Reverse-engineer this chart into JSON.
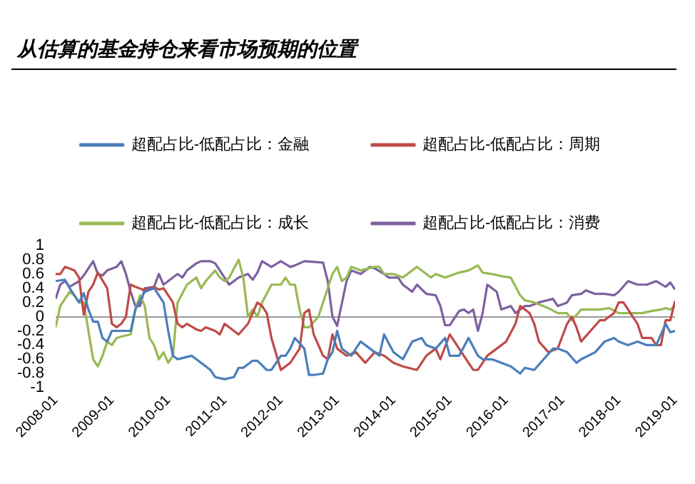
{
  "chart_data": {
    "type": "line",
    "title": "从估算的基金持仓来看市场预期的位置",
    "legend": "top",
    "xlim": [
      "2008-01",
      "2019-01"
    ],
    "xticks": [
      "2008-01",
      "2009-01",
      "2010-01",
      "2011-01",
      "2012-01",
      "2013-01",
      "2014-01",
      "2015-01",
      "2016-01",
      "2017-01",
      "2018-01",
      "2019-01"
    ],
    "ylim": [
      -1,
      1
    ],
    "yticks": [
      -1,
      -0.8,
      -0.6,
      -0.4,
      -0.2,
      0,
      0.2,
      0.4,
      0.6,
      0.8,
      1
    ],
    "series": [
      {
        "name": "超配占比-低配占比：金融",
        "color": "#4a7ebb",
        "x": [
          "2008-01",
          "2008-03",
          "2008-04",
          "2008-05",
          "2008-06",
          "2008-07",
          "2008-08",
          "2008-09",
          "2008-10",
          "2008-11",
          "2008-12",
          "2009-01",
          "2009-03",
          "2009-05",
          "2009-06",
          "2009-08",
          "2009-10",
          "2009-12",
          "2010-01",
          "2010-02",
          "2010-03",
          "2010-06",
          "2010-08",
          "2010-10",
          "2010-11",
          "2011-01",
          "2011-03",
          "2011-04",
          "2011-05",
          "2011-07",
          "2011-08",
          "2011-10",
          "2011-11",
          "2012-01",
          "2012-02",
          "2012-03",
          "2012-04",
          "2012-06",
          "2012-07",
          "2012-08",
          "2012-10",
          "2012-11",
          "2012-12",
          "2013-01",
          "2013-02",
          "2013-04",
          "2013-06",
          "2013-08",
          "2013-10",
          "2013-11",
          "2014-01",
          "2014-03",
          "2014-05",
          "2014-07",
          "2014-08",
          "2014-10",
          "2014-12",
          "2015-01",
          "2015-03",
          "2015-05",
          "2015-07",
          "2015-08",
          "2015-10",
          "2015-12",
          "2016-02",
          "2016-04",
          "2016-05",
          "2016-07",
          "2016-09",
          "2016-11",
          "2016-12",
          "2017-02",
          "2017-04",
          "2017-05",
          "2017-08",
          "2017-10",
          "2017-12",
          "2018-01",
          "2018-03",
          "2018-05",
          "2018-07",
          "2018-09",
          "2018-11",
          "2018-12",
          "2019-01"
        ],
        "values": [
          0.5,
          0.52,
          0.4,
          0.3,
          0.2,
          0.33,
          0.1,
          -0.07,
          -0.07,
          -0.3,
          -0.35,
          -0.2,
          -0.2,
          -0.2,
          0.1,
          0.35,
          0.4,
          0.2,
          -0.2,
          -0.55,
          -0.6,
          -0.55,
          -0.65,
          -0.75,
          -0.85,
          -0.88,
          -0.85,
          -0.72,
          -0.72,
          -0.62,
          -0.62,
          -0.75,
          -0.75,
          -0.55,
          -0.55,
          -0.45,
          -0.3,
          -0.45,
          -0.82,
          -0.82,
          -0.8,
          -0.6,
          -0.5,
          -0.2,
          -0.45,
          -0.55,
          -0.35,
          -0.45,
          -0.55,
          -0.25,
          -0.5,
          -0.6,
          -0.35,
          -0.3,
          -0.4,
          -0.45,
          -0.3,
          -0.55,
          -0.55,
          -0.3,
          -0.55,
          -0.6,
          -0.6,
          -0.65,
          -0.7,
          -0.8,
          -0.72,
          -0.75,
          -0.6,
          -0.45,
          -0.45,
          -0.5,
          -0.65,
          -0.6,
          -0.5,
          -0.35,
          -0.3,
          -0.35,
          -0.4,
          -0.35,
          -0.4,
          -0.4,
          -0.1,
          -0.22,
          -0.2
        ]
      },
      {
        "name": "超配占比-低配占比：周期",
        "color": "#be4b48",
        "x": [
          "2008-01",
          "2008-02",
          "2008-03",
          "2008-05",
          "2008-06",
          "2008-07",
          "2008-08",
          "2008-09",
          "2008-10",
          "2008-12",
          "2009-01",
          "2009-02",
          "2009-03",
          "2009-04",
          "2009-05",
          "2009-06",
          "2009-08",
          "2009-10",
          "2009-11",
          "2009-12",
          "2010-02",
          "2010-03",
          "2010-04",
          "2010-05",
          "2010-07",
          "2010-08",
          "2010-09",
          "2010-11",
          "2010-12",
          "2011-01",
          "2011-02",
          "2011-04",
          "2011-06",
          "2011-07",
          "2011-08",
          "2011-09",
          "2011-10",
          "2011-11",
          "2012-01",
          "2012-03",
          "2012-04",
          "2012-05",
          "2012-06",
          "2012-07",
          "2012-08",
          "2012-10",
          "2012-11",
          "2012-12",
          "2013-01",
          "2013-03",
          "2013-05",
          "2013-07",
          "2013-09",
          "2013-11",
          "2014-01",
          "2014-03",
          "2014-06",
          "2014-08",
          "2014-10",
          "2014-11",
          "2015-01",
          "2015-04",
          "2015-06",
          "2015-07",
          "2015-09",
          "2015-11",
          "2016-01",
          "2016-03",
          "2016-04",
          "2016-06",
          "2016-07",
          "2016-08",
          "2016-10",
          "2016-12",
          "2017-02",
          "2017-03",
          "2017-04",
          "2017-05",
          "2017-07",
          "2017-09",
          "2017-10",
          "2017-12",
          "2018-01",
          "2018-02",
          "2018-05",
          "2018-06",
          "2018-08",
          "2018-09",
          "2018-10",
          "2018-11",
          "2018-12",
          "2019-01"
        ],
        "values": [
          0.6,
          0.6,
          0.7,
          0.65,
          0.55,
          0.03,
          0.35,
          0.45,
          0.62,
          0.4,
          -0.1,
          -0.15,
          -0.1,
          0,
          0.45,
          0.42,
          0.37,
          0.42,
          0.38,
          0.4,
          0.2,
          -0.1,
          -0.15,
          -0.1,
          -0.18,
          -0.2,
          -0.15,
          -0.2,
          -0.25,
          -0.1,
          -0.15,
          -0.25,
          -0.1,
          0.05,
          0.2,
          0.15,
          0.05,
          -0.3,
          -0.75,
          -0.65,
          -0.55,
          -0.45,
          0.05,
          0.1,
          -0.25,
          -0.55,
          -0.6,
          -0.25,
          -0.45,
          -0.55,
          -0.5,
          -0.65,
          -0.5,
          -0.55,
          -0.65,
          -0.7,
          -0.75,
          -0.55,
          -0.45,
          -0.6,
          -0.25,
          -0.55,
          -0.75,
          -0.75,
          -0.55,
          -0.45,
          -0.35,
          -0.1,
          0.15,
          0.05,
          -0.1,
          -0.35,
          -0.5,
          -0.45,
          -0.1,
          0,
          -0.15,
          -0.35,
          -0.2,
          -0.05,
          -0.05,
          0.05,
          0.2,
          0.2,
          -0.1,
          -0.3,
          -0.3,
          -0.4,
          -0.4,
          -0.05,
          -0.05,
          0.22
        ]
      },
      {
        "name": "超配占比-低配占比：成长",
        "color": "#98b954",
        "x": [
          "2008-01",
          "2008-02",
          "2008-04",
          "2008-05",
          "2008-06",
          "2008-07",
          "2008-08",
          "2008-09",
          "2008-10",
          "2008-11",
          "2008-12",
          "2009-01",
          "2009-02",
          "2009-03",
          "2009-05",
          "2009-06",
          "2009-07",
          "2009-08",
          "2009-09",
          "2009-10",
          "2009-11",
          "2009-12",
          "2010-01",
          "2010-02",
          "2010-03",
          "2010-05",
          "2010-07",
          "2010-08",
          "2010-09",
          "2010-11",
          "2010-12",
          "2011-01",
          "2011-02",
          "2011-04",
          "2011-05",
          "2011-06",
          "2011-07",
          "2011-08",
          "2011-09",
          "2011-11",
          "2012-01",
          "2012-02",
          "2012-03",
          "2012-04",
          "2012-05",
          "2012-06",
          "2012-07",
          "2012-09",
          "2012-10",
          "2012-11",
          "2012-12",
          "2013-01",
          "2013-02",
          "2013-03",
          "2013-04",
          "2013-06",
          "2013-09",
          "2013-10",
          "2013-11",
          "2014-01",
          "2014-03",
          "2014-06",
          "2014-07",
          "2014-09",
          "2014-10",
          "2014-12",
          "2015-03",
          "2015-05",
          "2015-07",
          "2015-08",
          "2015-10",
          "2015-12",
          "2016-02",
          "2016-04",
          "2016-05",
          "2016-07",
          "2016-10",
          "2016-12",
          "2017-02",
          "2017-03",
          "2017-05",
          "2017-07",
          "2017-09",
          "2017-11",
          "2018-01",
          "2018-03",
          "2018-06",
          "2018-08",
          "2018-10",
          "2018-11",
          "2018-12",
          "2019-01"
        ],
        "values": [
          -0.15,
          0.15,
          0.35,
          0.3,
          0.2,
          0.2,
          -0.2,
          -0.6,
          -0.7,
          -0.55,
          -0.35,
          -0.4,
          -0.3,
          -0.28,
          -0.25,
          0.1,
          0.3,
          0.15,
          -0.3,
          -0.4,
          -0.6,
          -0.5,
          -0.65,
          -0.55,
          0.2,
          0.45,
          0.55,
          0.4,
          0.5,
          0.65,
          0.55,
          0.5,
          0.55,
          0.8,
          0.55,
          0,
          0.1,
          0,
          0.2,
          0.45,
          0.45,
          0.55,
          0.45,
          0.45,
          0.1,
          -0.15,
          -0.15,
          0,
          0.2,
          0.4,
          0.6,
          0.7,
          0.5,
          0.55,
          0.7,
          0.65,
          0.7,
          0.7,
          0.6,
          0.6,
          0.55,
          0.7,
          0.65,
          0.55,
          0.6,
          0.55,
          0.62,
          0.65,
          0.72,
          0.62,
          0.6,
          0.57,
          0.55,
          0.3,
          0.23,
          0.2,
          0.12,
          0.05,
          0.05,
          -0.05,
          0.1,
          0.1,
          0.1,
          0.12,
          0.05,
          0.05,
          0.05,
          0.08,
          0.1,
          0.12,
          0.1,
          0.15
        ]
      },
      {
        "name": "超配占比-低配占比：消费",
        "color": "#7d60a0",
        "x": [
          "2008-01",
          "2008-02",
          "2008-03",
          "2008-04",
          "2008-06",
          "2008-07",
          "2008-09",
          "2008-10",
          "2008-11",
          "2008-12",
          "2009-02",
          "2009-03",
          "2009-04",
          "2009-05",
          "2009-06",
          "2009-07",
          "2009-08",
          "2009-10",
          "2009-11",
          "2009-12",
          "2010-02",
          "2010-03",
          "2010-04",
          "2010-05",
          "2010-07",
          "2010-08",
          "2010-10",
          "2010-11",
          "2010-12",
          "2011-01",
          "2011-02",
          "2011-04",
          "2011-06",
          "2011-07",
          "2011-08",
          "2011-09",
          "2011-11",
          "2012-01",
          "2012-03",
          "2012-04",
          "2012-06",
          "2012-08",
          "2012-10",
          "2012-11",
          "2012-12",
          "2013-01",
          "2013-03",
          "2013-04",
          "2013-06",
          "2013-08",
          "2013-09",
          "2013-11",
          "2013-12",
          "2014-02",
          "2014-03",
          "2014-05",
          "2014-06",
          "2014-08",
          "2014-10",
          "2014-11",
          "2014-12",
          "2015-01",
          "2015-03",
          "2015-04",
          "2015-05",
          "2015-06",
          "2015-07",
          "2015-08",
          "2015-09",
          "2015-11",
          "2015-12",
          "2016-02",
          "2016-03",
          "2016-05",
          "2016-06",
          "2016-08",
          "2016-11",
          "2016-12",
          "2017-02",
          "2017-03",
          "2017-05",
          "2017-06",
          "2017-08",
          "2017-10",
          "2017-12",
          "2018-01",
          "2018-03",
          "2018-05",
          "2018-07",
          "2018-09",
          "2018-11",
          "2018-12",
          "2019-01"
        ],
        "values": [
          0.25,
          0.45,
          0.5,
          0.42,
          0.5,
          0.58,
          0.78,
          0.6,
          0.58,
          0.65,
          0.7,
          0.78,
          0.6,
          0.35,
          0.15,
          0.15,
          0.4,
          0.42,
          0.6,
          0.45,
          0.55,
          0.6,
          0.55,
          0.65,
          0.75,
          0.78,
          0.78,
          0.75,
          0.65,
          0.55,
          0.45,
          0.55,
          0.6,
          0.52,
          0.62,
          0.78,
          0.7,
          0.78,
          0.7,
          0.72,
          0.78,
          0.77,
          0.76,
          0.5,
          0,
          -0.13,
          0.5,
          0.65,
          0.6,
          0.7,
          0.68,
          0.6,
          0.55,
          0.55,
          0.45,
          0.35,
          0.45,
          0.32,
          0.3,
          0.15,
          -0.12,
          -0.12,
          0.08,
          0.1,
          0.05,
          0.1,
          -0.2,
          0.05,
          0.45,
          0.35,
          0.1,
          0.15,
          0.05,
          0.15,
          0.15,
          0.2,
          0.25,
          0.15,
          0.2,
          0.3,
          0.32,
          0.37,
          0.32,
          0.32,
          0.3,
          0.35,
          0.5,
          0.45,
          0.45,
          0.5,
          0.42,
          0.48,
          0.38
        ]
      }
    ]
  }
}
